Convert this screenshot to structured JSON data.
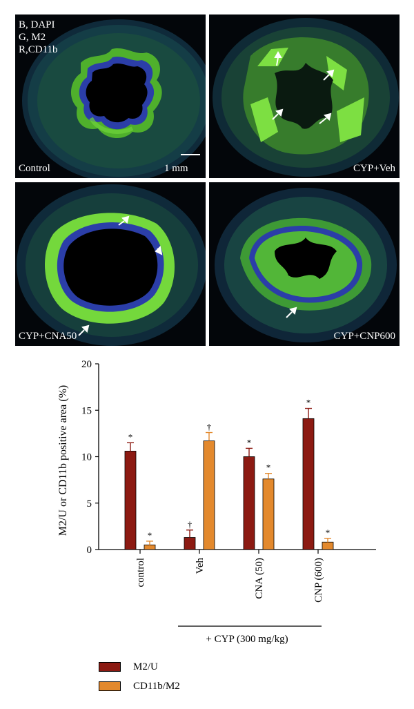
{
  "panels": [
    {
      "id": "control",
      "label": "Control",
      "channels": [
        "B, DAPI",
        "G, M2",
        "R,CD11b"
      ],
      "scale_bar": "1 mm"
    },
    {
      "id": "cyp-veh",
      "label": "CYP+Veh"
    },
    {
      "id": "cyp-cna50",
      "label": "CYP+CNA50"
    },
    {
      "id": "cyp-cnp600",
      "label": "CYP+CNP600"
    }
  ],
  "colors": {
    "m2u": "#8c1a12",
    "cd11b": "#e3892d",
    "tissue_green": "#5ec62e",
    "dapi_blue": "#2b3ea8"
  },
  "chart_data": {
    "type": "bar",
    "title": "",
    "ylabel": "M2/U or CD11b positive area (%)",
    "xlabel": "",
    "ylim": [
      0,
      20
    ],
    "yticks": [
      0,
      5,
      10,
      15,
      20
    ],
    "categories": [
      "control",
      "Veh",
      "CNA (50)",
      "CNP (600)"
    ],
    "group_label": "+ CYP (300 mg/kg)",
    "series": [
      {
        "name": "M2/U",
        "values": [
          10.6,
          1.3,
          10.0,
          14.1
        ],
        "errors": [
          0.9,
          0.8,
          0.9,
          1.1
        ],
        "marks": [
          "*",
          "†",
          "*",
          "*"
        ]
      },
      {
        "name": "CD11b/M2",
        "values": [
          0.5,
          11.7,
          7.6,
          0.8
        ],
        "errors": [
          0.4,
          0.9,
          0.6,
          0.4
        ],
        "marks": [
          "*",
          "†",
          "*",
          "*"
        ]
      }
    ],
    "legend_position": "bottom-left"
  }
}
